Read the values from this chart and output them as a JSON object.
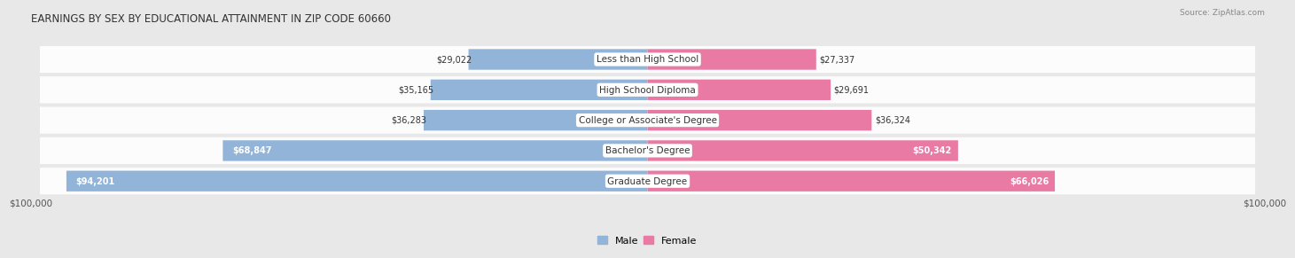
{
  "title": "EARNINGS BY SEX BY EDUCATIONAL ATTAINMENT IN ZIP CODE 60660",
  "source": "Source: ZipAtlas.com",
  "categories": [
    "Less than High School",
    "High School Diploma",
    "College or Associate's Degree",
    "Bachelor's Degree",
    "Graduate Degree"
  ],
  "male_values": [
    29022,
    35165,
    36283,
    68847,
    94201
  ],
  "female_values": [
    27337,
    29691,
    36324,
    50342,
    66026
  ],
  "male_labels": [
    "$29,022",
    "$35,165",
    "$36,283",
    "$68,847",
    "$94,201"
  ],
  "female_labels": [
    "$27,337",
    "$29,691",
    "$36,324",
    "$50,342",
    "$66,026"
  ],
  "male_color": "#92b4d8",
  "female_color": "#e87aa3",
  "bg_color": "#e8e8e8",
  "max_value": 100000,
  "xlabel_left": "$100,000",
  "xlabel_right": "$100,000"
}
